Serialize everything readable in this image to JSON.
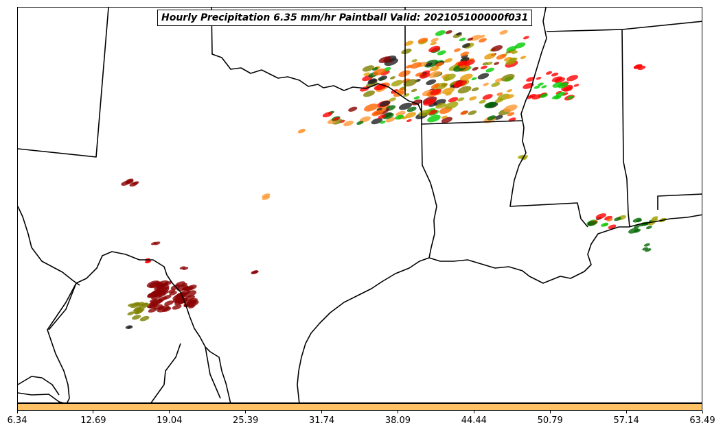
{
  "title": "Hourly Precipitation 6.35 mm/hr Paintball Valid: 202105100000f031",
  "colorbar": {
    "color": "#ffc366",
    "ticks": [
      "6.34",
      "12.69",
      "19.04",
      "25.39",
      "31.74",
      "38.09",
      "44.44",
      "50.79",
      "57.14",
      "63.49"
    ]
  },
  "paintball_colors": [
    "#ff0000",
    "#ff6600",
    "#ff9933",
    "#e69900",
    "#00cc00",
    "#006600",
    "#808000",
    "#a0a000",
    "#8b0000",
    "#202020"
  ],
  "map_features": [
    "state-borders",
    "coastline",
    "international-border"
  ]
}
